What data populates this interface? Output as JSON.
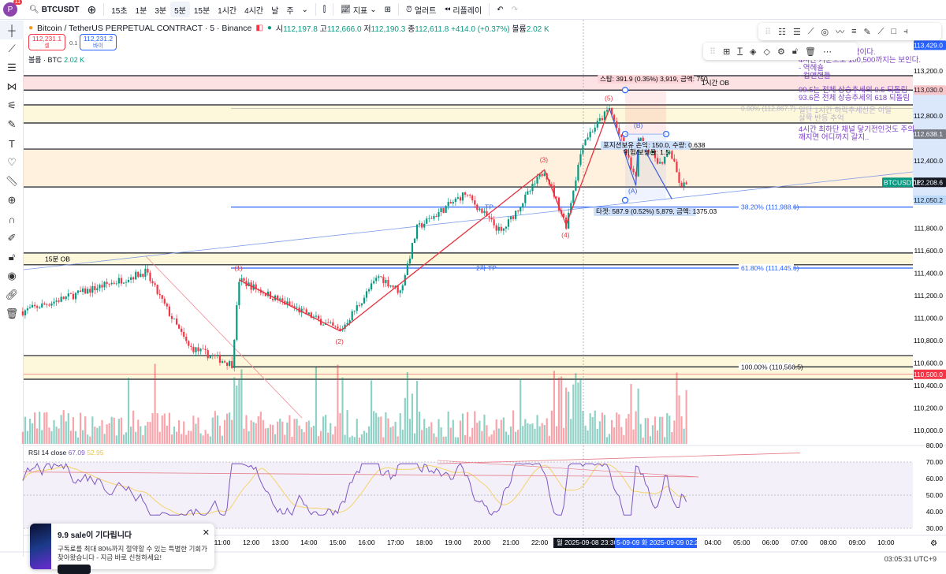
{
  "topbar": {
    "avatar_letter": "P",
    "avatar_badge": "11",
    "symbol": "BTCUSDT",
    "intervals": [
      "15초",
      "1분",
      "3분",
      "5분",
      "15분",
      "1시간",
      "4시간",
      "날",
      "주"
    ],
    "active_interval": "5분",
    "indicators": "지표",
    "alerts": "얼러트",
    "replay": "리플레이"
  },
  "header": {
    "title": "Bitcoin / TetherUS PERPETUAL CONTRACT · 5 · Binance",
    "open_label": "시",
    "open": "112,197.8",
    "high_label": "고",
    "high": "112,666.0",
    "low_label": "저",
    "low": "112,190.3",
    "close_label": "종",
    "close": "112,611.8",
    "change": "+414.0 (+0.37%)",
    "vol_label": "볼륨",
    "vol": "2.02 K",
    "sell_price": "112,231.1",
    "sell_label": "셀",
    "spread": "0.1",
    "buy_price": "112,231.2",
    "buy_label": "바이",
    "volume_legend": "볼륨 · BTC",
    "volume_value": "2.02 K"
  },
  "colors": {
    "up": "#089981",
    "down": "#f23645",
    "accent": "#2962ff",
    "rsi": "#7e57c2",
    "rsi_ma": "#f5d36b",
    "note": "#7b3fc4"
  },
  "price_axis": {
    "ticks": [
      "113,200.0",
      "112,800.0",
      "112,400.0",
      "111,800.0",
      "111,600.0",
      "111,400.0",
      "111,200.0",
      "111,000.0",
      "110,800.0",
      "110,600.0",
      "110,400.0",
      "110,200.0",
      "110,000.0"
    ],
    "tick_values": [
      113200,
      112800,
      112400,
      111800,
      111600,
      111400,
      111200,
      111000,
      110800,
      110600,
      110400,
      110200,
      110000
    ],
    "markers": [
      {
        "value": 113429,
        "label": "113,429.0",
        "bg": "#2962ff",
        "fg": "#ffffff"
      },
      {
        "value": 113030,
        "label": "113,030.0",
        "bg": "#f7c6c9",
        "fg": "#131722"
      },
      {
        "value": 112638.1,
        "label": "112,638.1",
        "bg": "#787b86",
        "fg": "#ffffff"
      },
      {
        "value": 112208.6,
        "label": "112,208.6",
        "bg": "#131722",
        "fg": "#ffffff"
      },
      {
        "value": 112050.2,
        "label": "112,050.2",
        "bg": "#bbd9fb",
        "fg": "#131722"
      },
      {
        "value": 110500,
        "label": "110,500.0",
        "bg": "#f23645",
        "fg": "#ffffff"
      }
    ],
    "symbol_tag": "BTCUSDT.P"
  },
  "rsi": {
    "legend": "RSI 14 close",
    "value": "67.09",
    "ma_value": "52.95",
    "ticks": [
      "80.00",
      "70.00",
      "60.00",
      "50.00",
      "40.00",
      "30.00"
    ],
    "tick_values": [
      80,
      70,
      60,
      50,
      40,
      30
    ]
  },
  "time_axis": {
    "ticks": [
      "11:00",
      "12:00",
      "13:00",
      "14:00",
      "15:00",
      "16:00",
      "17:00",
      "18:00",
      "19:00",
      "20:00",
      "21:00",
      "22:00",
      "04:00",
      "05:00",
      "06:00",
      "07:00",
      "08:00",
      "09:00",
      "10:00"
    ],
    "tick_times": [
      "2025-09-08 11:00",
      "2025-09-08 12:00",
      "2025-09-08 13:00",
      "2025-09-08 14:00",
      "2025-09-08 15:00",
      "2025-09-08 16:00",
      "2025-09-08 17:00",
      "2025-09-08 18:00",
      "2025-09-08 19:00",
      "2025-09-08 20:00",
      "2025-09-08 21:00",
      "2025-09-08 22:00",
      "2025-09-09 04:00",
      "2025-09-09 05:00",
      "2025-09-09 06:00",
      "2025-09-09 07:00",
      "2025-09-09 08:00",
      "2025-09-09 09:00",
      "2025-09-09 10:00"
    ],
    "crosshair_label": "월 2025-09-08   23:30",
    "range_label_start": "5-09-09",
    "range_label_end": "화 2025-09-09   02:20"
  },
  "chart_data": {
    "type": "candlestick",
    "interval": "5m",
    "price_path": [
      [
        "2025-09-08 04:05",
        111060
      ],
      [
        "2025-09-08 08:20",
        111410
      ],
      [
        "2025-09-08 09:50",
        110745
      ],
      [
        "2025-09-08 11:20",
        110590
      ],
      [
        "2025-09-08 11:35",
        111340
      ],
      [
        "2025-09-08 15:05",
        110885
      ],
      [
        "2025-09-08 16:25",
        111375
      ],
      [
        "2025-09-08 17:10",
        111235
      ],
      [
        "2025-09-08 17:45",
        111800
      ],
      [
        "2025-09-08 19:25",
        112110
      ],
      [
        "2025-09-08 20:40",
        111760
      ],
      [
        "2025-09-08 22:10",
        112320
      ],
      [
        "2025-09-08 22:55",
        111830
      ],
      [
        "2025-09-08 23:30",
        112570
      ],
      [
        "2025-09-09 00:25",
        112865
      ],
      [
        "2025-09-09 01:20",
        112230
      ],
      [
        "2025-09-09 01:25",
        112600
      ],
      [
        "2025-09-09 02:15",
        112360
      ],
      [
        "2025-09-09 02:30",
        112500
      ],
      [
        "2025-09-09 02:55",
        112150
      ],
      [
        "2025-09-09 03:05",
        112218
      ]
    ]
  },
  "drawings": {
    "zones": [
      {
        "label": "1시간 OB",
        "top": 113158,
        "bottom": 113030,
        "fill": "#fde2e3"
      },
      {
        "label": "",
        "top": 112898,
        "bottom": 112737,
        "fill": "#fdf8dc"
      },
      {
        "label": "",
        "top": 112505,
        "bottom": 112168,
        "fill": "#fff1dd"
      },
      {
        "label": "15분 OB",
        "top": 111580,
        "bottom": 111475,
        "fill": "#fdf8dc"
      },
      {
        "label": "",
        "top": 110667,
        "bottom": 110456,
        "fill": "#fdf8dc"
      }
    ],
    "fib": [
      {
        "label": "0.00% (112,867.7)",
        "value": 112867.7,
        "color": "#b2b5be"
      },
      {
        "label": "38.20% (111,988.6)",
        "value": 111988.6,
        "color": "#2962ff"
      },
      {
        "label": "61.80% (111,445.6)",
        "value": 111445.6,
        "color": "#2962ff"
      },
      {
        "label": "100.00% (110,566.5)",
        "value": 110566.5,
        "color": "#131722"
      }
    ],
    "tp_label": "TP",
    "tp2_label": "2차 TP",
    "waves": [
      "(1)",
      "(2)",
      "(3)",
      "(4)",
      "(5)"
    ],
    "corrective": [
      "(A)",
      "(B)"
    ],
    "position": {
      "stop_label": "스탑: 391.9 (0.35%) 3,919, 금액: 750",
      "target_label": "타겟: 587.9 (0.52%) 5,879, 금액: 1375.03",
      "info_label_1": "포지션보유 손익: 150.0, 수량: 0.638",
      "info_label_2": "위험/보상율: 1.5",
      "stop": 113030,
      "entry": 112638.1,
      "target": 112050.2
    },
    "notes": [
      {
        "lines": [
          "하락이다.",
          "4시간 기준으로 100,500까지는 보인다.",
          " - 역헤숄",
          " - 컵앤핸들"
        ]
      },
      {
        "lines": [
          "99.5는 전체 상승추세의 0.5 되돌림",
          "93.6은 전체 상승추세의 618 되돌림"
        ]
      },
      {
        "lines": [
          "일단 1시간 하락추세선은 이탈",
          "살짝 반등 추억"
        ]
      },
      {
        "lines": [
          "4시간 최하단 채널 닿기전인것도 주의",
          "깨지면 어디까지 갈지.."
        ]
      }
    ]
  },
  "promo": {
    "title": "9.9 sale이 기다립니다",
    "text": "구독료를 최대 80%까지 절약할 수 있는 특별한 기회가 찾아왔습니다 - 지금 바로 신청하세요!"
  },
  "footer": {
    "clock": "03:05:31 UTC+9"
  }
}
